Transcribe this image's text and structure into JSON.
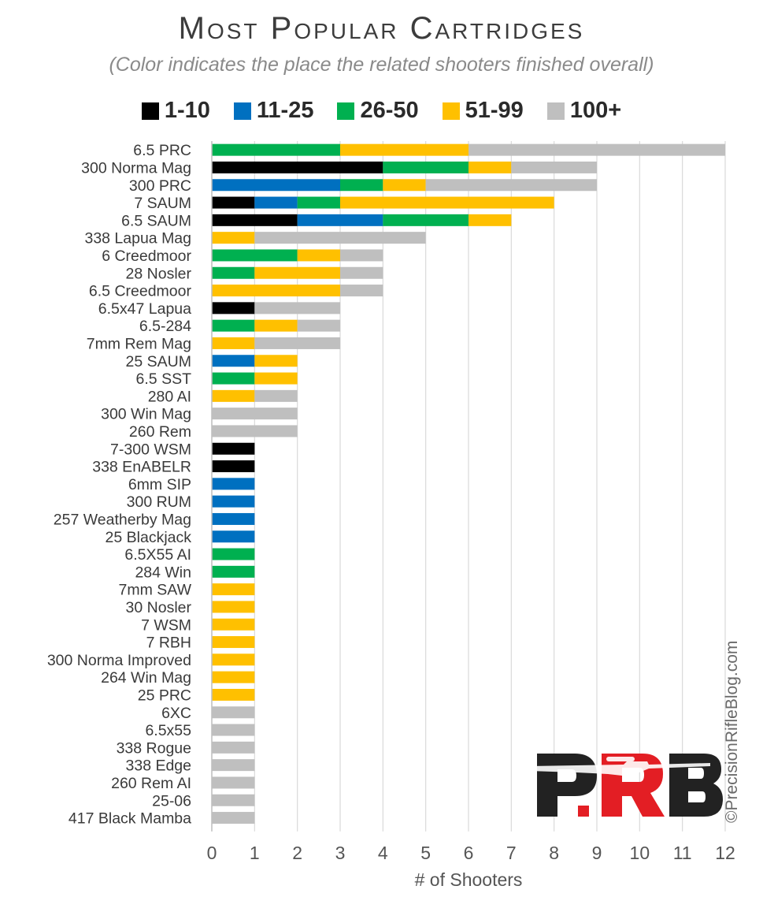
{
  "chart_data": {
    "type": "bar",
    "orientation": "horizontal",
    "stacked": true,
    "title": "Most Popular Cartridges",
    "subtitle": "(Color indicates the place the related shooters finished overall)",
    "xlabel": "# of Shooters",
    "ylabel": "",
    "xlim": [
      0,
      12
    ],
    "x_ticks": [
      "0",
      "1",
      "2",
      "3",
      "4",
      "5",
      "6",
      "7",
      "8",
      "9",
      "10",
      "11",
      "12"
    ],
    "grid": "vertical",
    "legend_position": "top",
    "categories": [
      "6.5 PRC",
      "300 Norma Mag",
      "300 PRC",
      "7 SAUM",
      "6.5 SAUM",
      "338 Lapua Mag",
      "6 Creedmoor",
      "28 Nosler",
      "6.5 Creedmoor",
      "6.5x47 Lapua",
      "6.5-284",
      "7mm Rem Mag",
      "25 SAUM",
      "6.5 SST",
      "280 AI",
      "300 Win Mag",
      "260 Rem",
      "7-300 WSM",
      "338 EnABELR",
      "6mm SIP",
      "300 RUM",
      "257 Weatherby Mag",
      "25 Blackjack",
      "6.5X55 AI",
      "284 Win",
      "7mm SAW",
      "30 Nosler",
      "7 WSM",
      "7 RBH",
      "300 Norma Improved",
      "264 Win Mag",
      "25 PRC",
      "6XC",
      "6.5x55",
      "338 Rogue",
      "338 Edge",
      "260 Rem AI",
      "25-06",
      "417 Black Mamba"
    ],
    "series": [
      {
        "name": "1-10",
        "color": "#000000",
        "values": [
          0,
          4,
          0,
          1,
          2,
          0,
          0,
          0,
          0,
          1,
          0,
          0,
          0,
          0,
          0,
          0,
          0,
          1,
          1,
          0,
          0,
          0,
          0,
          0,
          0,
          0,
          0,
          0,
          0,
          0,
          0,
          0,
          0,
          0,
          0,
          0,
          0,
          0,
          0
        ]
      },
      {
        "name": "11-25",
        "color": "#0070C0",
        "values": [
          0,
          0,
          3,
          1,
          2,
          0,
          0,
          0,
          0,
          0,
          0,
          0,
          1,
          0,
          0,
          0,
          0,
          0,
          0,
          1,
          1,
          1,
          1,
          0,
          0,
          0,
          0,
          0,
          0,
          0,
          0,
          0,
          0,
          0,
          0,
          0,
          0,
          0,
          0
        ]
      },
      {
        "name": "26-50",
        "color": "#00B050",
        "values": [
          3,
          2,
          1,
          1,
          2,
          0,
          2,
          1,
          0,
          0,
          1,
          0,
          0,
          1,
          0,
          0,
          0,
          0,
          0,
          0,
          0,
          0,
          0,
          1,
          1,
          0,
          0,
          0,
          0,
          0,
          0,
          0,
          0,
          0,
          0,
          0,
          0,
          0,
          0
        ]
      },
      {
        "name": "51-99",
        "color": "#FFC000",
        "values": [
          3,
          1,
          1,
          5,
          1,
          1,
          1,
          2,
          3,
          0,
          1,
          1,
          1,
          1,
          1,
          0,
          0,
          0,
          0,
          0,
          0,
          0,
          0,
          0,
          0,
          1,
          1,
          1,
          1,
          1,
          1,
          1,
          0,
          0,
          0,
          0,
          0,
          0,
          0
        ]
      },
      {
        "name": "100+",
        "color": "#BFBFBF",
        "values": [
          6,
          2,
          4,
          0,
          0,
          4,
          1,
          1,
          1,
          2,
          1,
          2,
          0,
          0,
          1,
          2,
          2,
          0,
          0,
          0,
          0,
          0,
          0,
          0,
          0,
          0,
          0,
          0,
          0,
          0,
          0,
          0,
          1,
          1,
          1,
          1,
          1,
          1,
          1
        ]
      }
    ]
  },
  "watermark": "©PrecisionRifleBlog.com",
  "logo": {
    "text": "PRB",
    "red": "#E31E24",
    "dark": "#222222"
  }
}
